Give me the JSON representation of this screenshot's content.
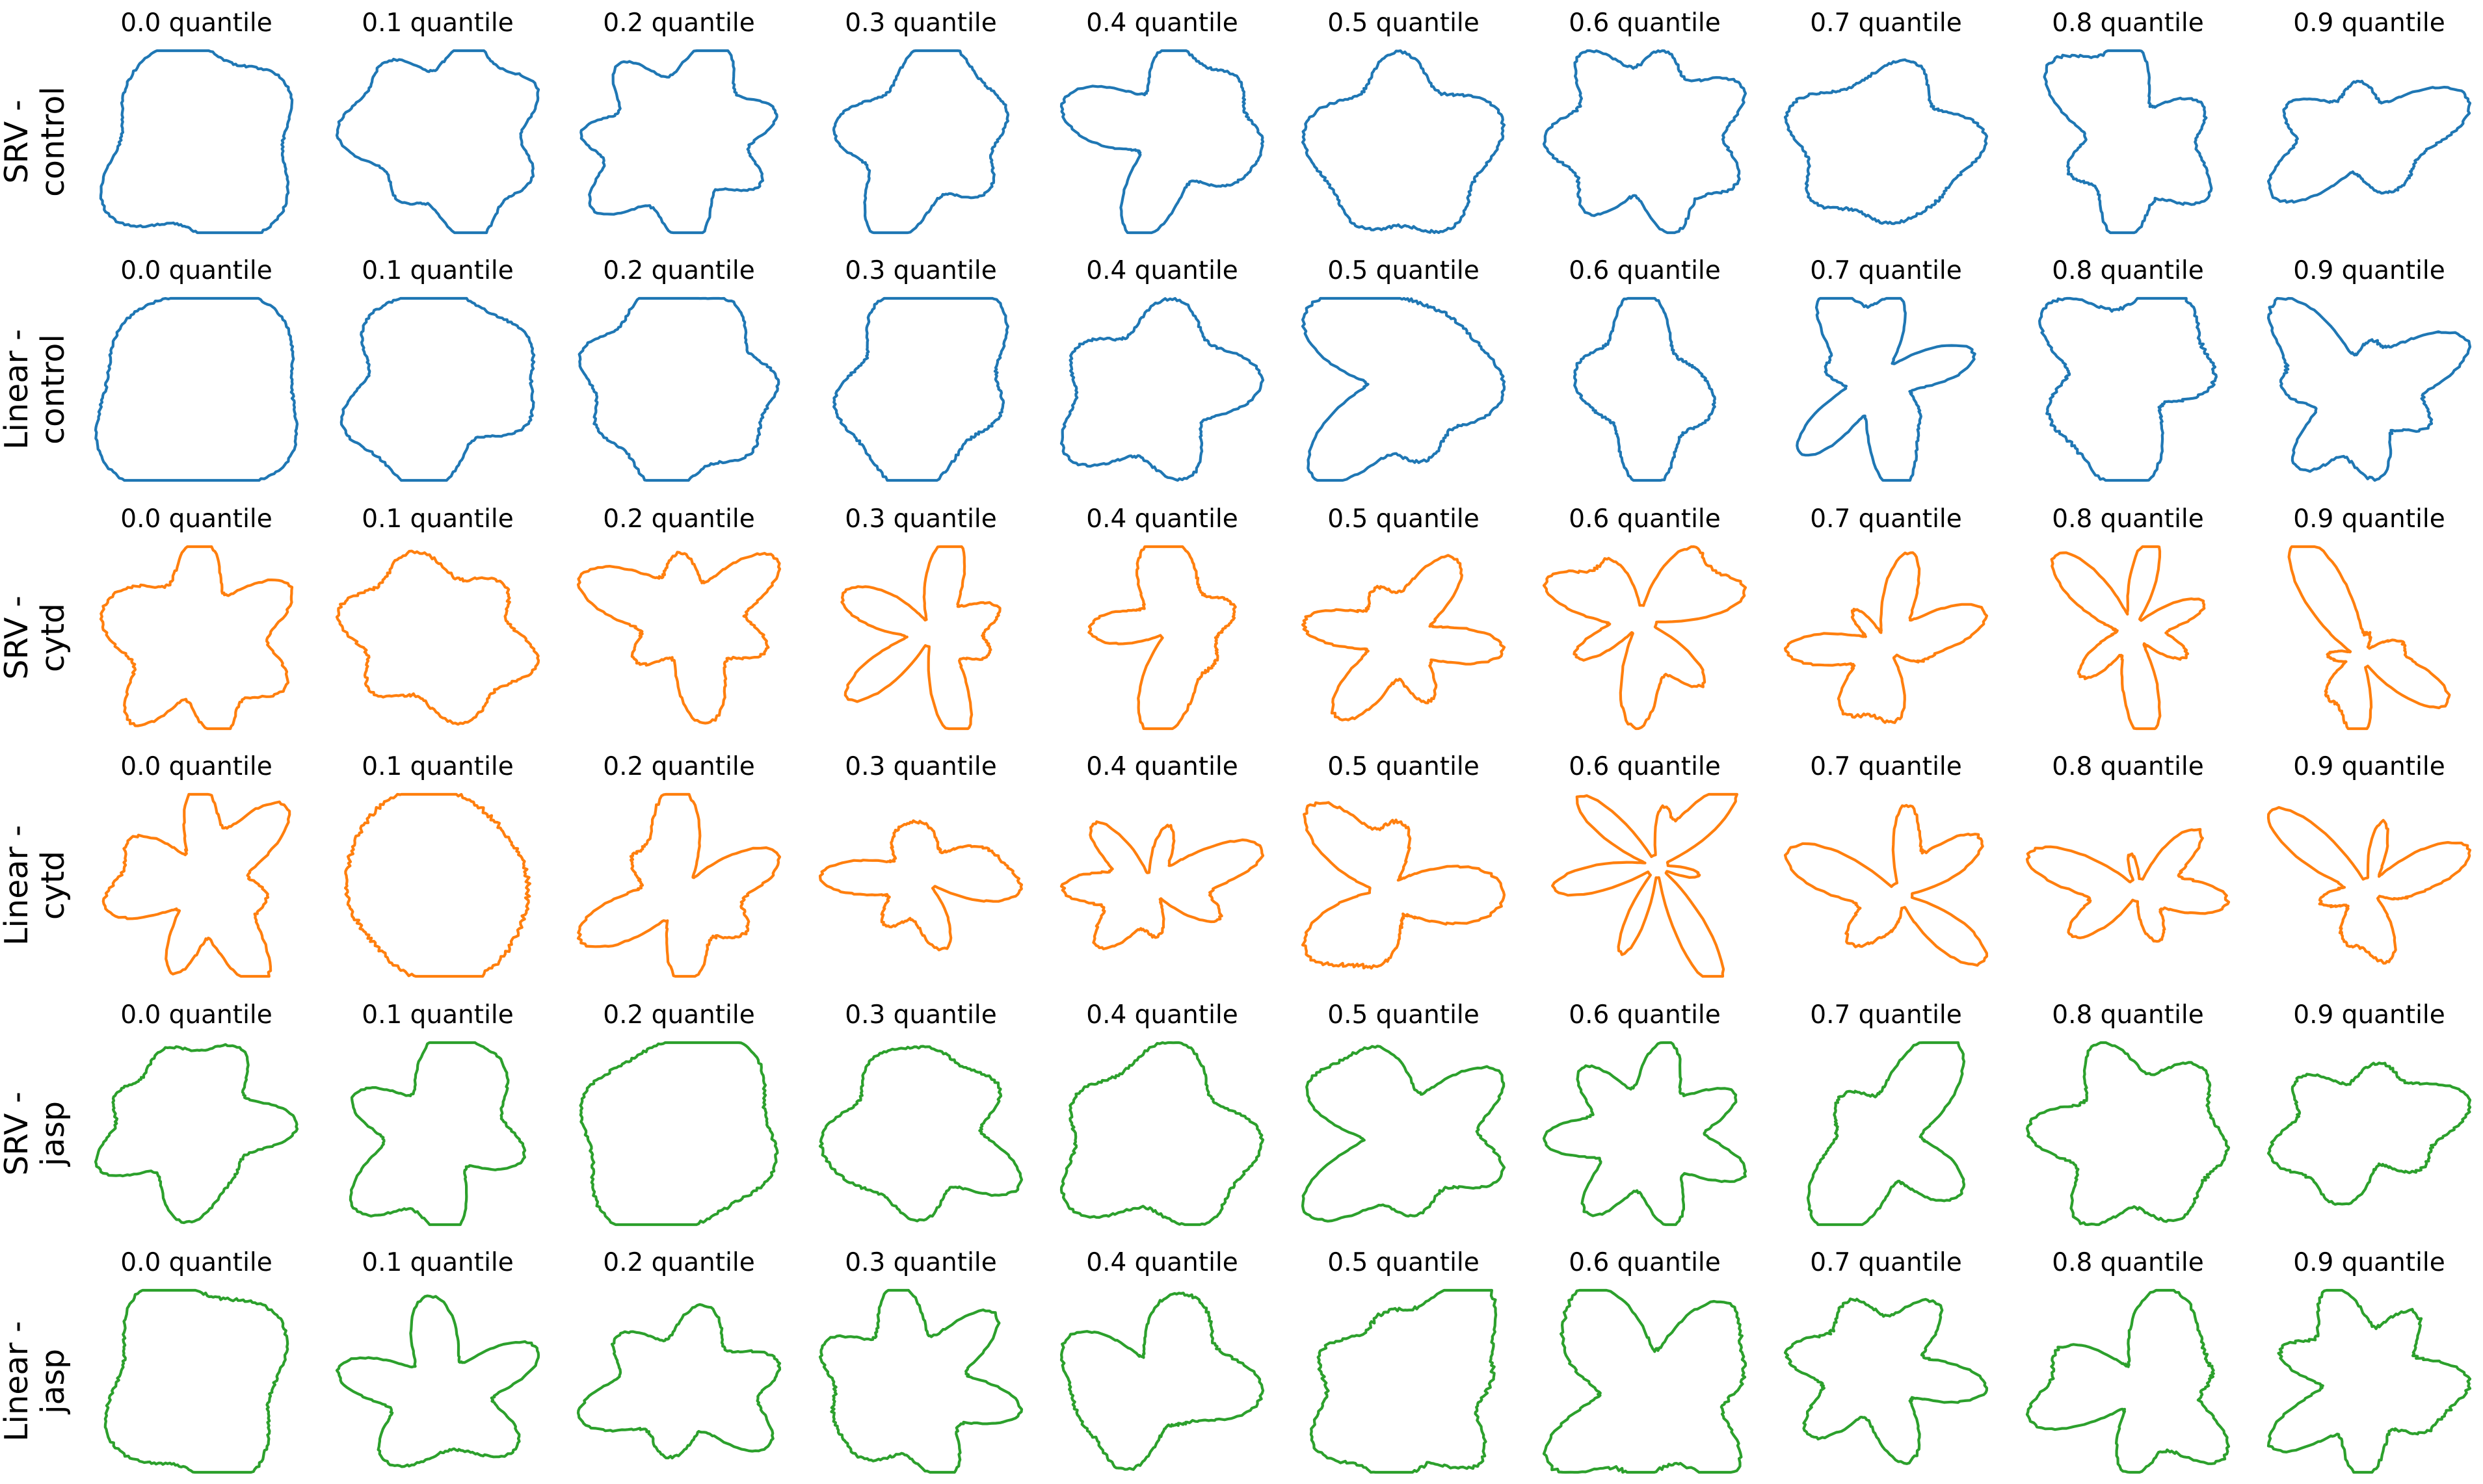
{
  "figure": {
    "columns": [
      "0.0 quantile",
      "0.1 quantile",
      "0.2 quantile",
      "0.3 quantile",
      "0.4 quantile",
      "0.5 quantile",
      "0.6 quantile",
      "0.7 quantile",
      "0.8 quantile",
      "0.9 quantile"
    ],
    "rows": [
      {
        "label_line1": "SRV -",
        "label_line2": "control",
        "group": "control"
      },
      {
        "label_line1": "Linear -",
        "label_line2": "control",
        "group": "control"
      },
      {
        "label_line1": "SRV -",
        "label_line2": "cytd",
        "group": "cytd"
      },
      {
        "label_line1": "Linear -",
        "label_line2": "cytd",
        "group": "cytd"
      },
      {
        "label_line1": "SRV -",
        "label_line2": "jasp",
        "group": "jasp"
      },
      {
        "label_line1": "Linear -",
        "label_line2": "jasp",
        "group": "jasp"
      }
    ],
    "colors": {
      "control": "#1f77b4",
      "cytd": "#ff7f0e",
      "jasp": "#2ca02c"
    }
  }
}
